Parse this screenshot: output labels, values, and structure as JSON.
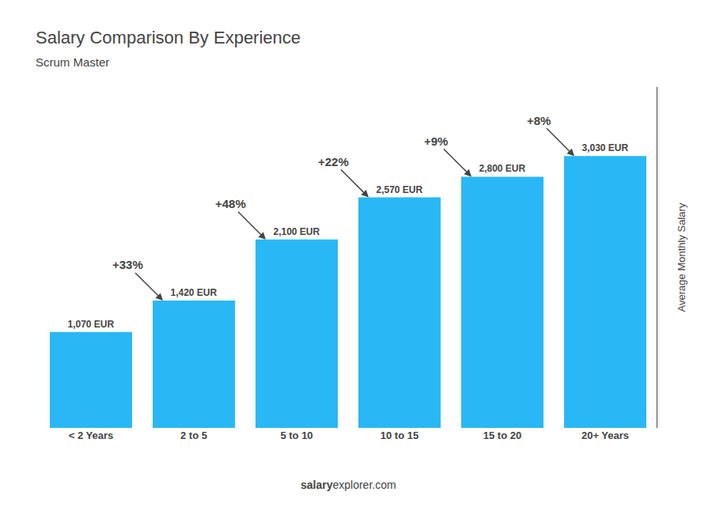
{
  "chart_data": {
    "type": "bar",
    "title": "Salary Comparison By Experience",
    "subtitle": "Scrum Master",
    "ylabel": "Average Monthly Salary",
    "categories": [
      "< 2 Years",
      "2 to 5",
      "5 to 10",
      "10 to 15",
      "15 to 20",
      "20+ Years"
    ],
    "values": [
      1070,
      1420,
      2100,
      2570,
      2800,
      3030
    ],
    "value_labels": [
      "1,070 EUR",
      "1,420 EUR",
      "2,100 EUR",
      "2,570 EUR",
      "2,800 EUR",
      "3,030 EUR"
    ],
    "data_labels": true,
    "color": "#29b8f5",
    "ylim": [
      0,
      3800
    ],
    "tick_labels": "x",
    "grid": false,
    "annotations": [
      "+33%",
      "+48%",
      "+22%",
      "+9%",
      "+8%"
    ],
    "footer": [
      "salary",
      "explorer.com"
    ]
  }
}
